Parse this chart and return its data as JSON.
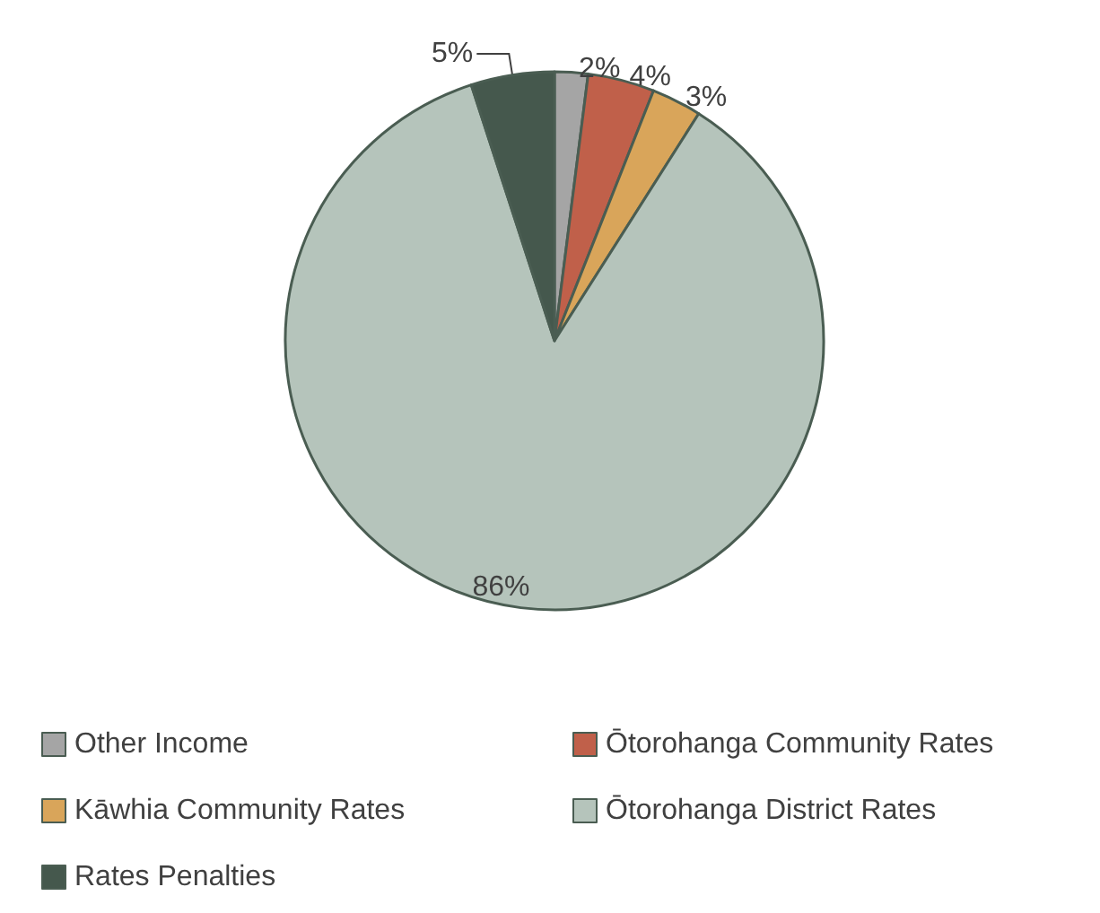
{
  "chart_data": {
    "type": "pie",
    "categories": [
      "Other Income",
      "Ōtorohanga Community Rates",
      "Kāwhia Community Rates",
      "Ōtorohanga District Rates",
      "Rates Penalties"
    ],
    "values": [
      2,
      4,
      3,
      86,
      5
    ],
    "colors": [
      "#a5a5a5",
      "#c0604a",
      "#d9a55a",
      "#b5c4bb",
      "#45584d"
    ],
    "value_labels": [
      "2%",
      "4%",
      "3%",
      "86%",
      "5%"
    ],
    "legend": "bottom"
  }
}
